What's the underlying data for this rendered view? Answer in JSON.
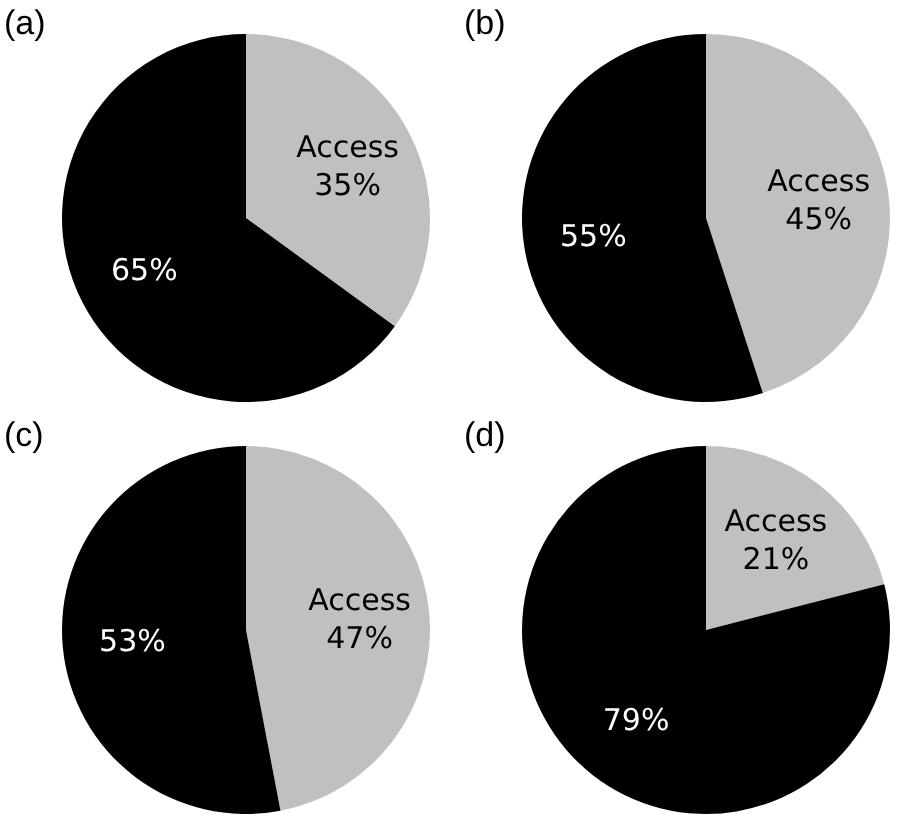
{
  "chart_data": [
    {
      "type": "pie",
      "title": "(a)",
      "categories": [
        "Access",
        null
      ],
      "values": [
        35,
        65
      ],
      "colors": [
        "#c0c0c0",
        "#000000"
      ],
      "value_labels": [
        "35%",
        "65%"
      ],
      "legend": false
    },
    {
      "type": "pie",
      "title": "(b)",
      "categories": [
        "Access",
        null
      ],
      "values": [
        45,
        55
      ],
      "colors": [
        "#c0c0c0",
        "#000000"
      ],
      "value_labels": [
        "45%",
        "55%"
      ],
      "legend": false
    },
    {
      "type": "pie",
      "title": "(c)",
      "categories": [
        "Access",
        null
      ],
      "values": [
        47,
        53
      ],
      "colors": [
        "#c0c0c0",
        "#000000"
      ],
      "value_labels": [
        "47%",
        "53%"
      ],
      "legend": false
    },
    {
      "type": "pie",
      "title": "(d)",
      "categories": [
        "Access",
        null
      ],
      "values": [
        21,
        79
      ],
      "colors": [
        "#c0c0c0",
        "#000000"
      ],
      "value_labels": [
        "21%",
        "79%"
      ],
      "legend": false
    }
  ]
}
